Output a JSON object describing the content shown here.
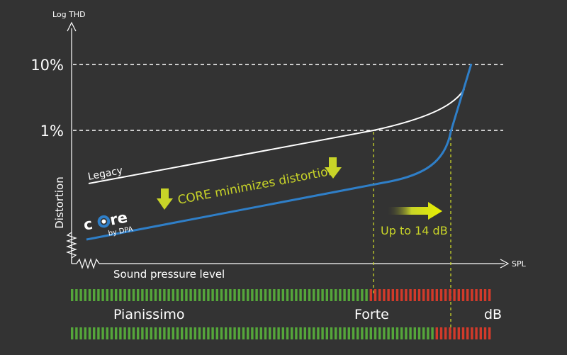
{
  "chart_data": {
    "type": "line",
    "axes": {
      "y_label": "Log THD",
      "y_title": "Distortion",
      "x_label": "SPL",
      "x_title": "Sound pressure level",
      "y_ticks": [
        "10%",
        "1%"
      ],
      "grid": "dashed at 1% and 10%"
    },
    "series": [
      {
        "name": "Legacy",
        "color": "#ffffff",
        "note": "linear rise, crosses 1% near Forte"
      },
      {
        "name": "CORE by DPA",
        "color": "#2f7fc8",
        "note": "stays lower, crosses 1% about 14 dB later"
      }
    ],
    "annotations": {
      "core_text": "CORE minimizes distortion",
      "gain_text": "Up to 14 dB",
      "text_color": "#c8d428"
    },
    "logo": {
      "word": "core",
      "by": "by DPA"
    },
    "level_bars": [
      {
        "name": "legacy-level-bar",
        "segments": 96,
        "green_segments": 68
      },
      {
        "name": "core-level-bar",
        "segments": 96,
        "green_segments": 83
      }
    ],
    "scale_labels": {
      "low": "Pianissimo",
      "mid": "Forte",
      "unit": "dB"
    },
    "colors": {
      "green": "#55a63a",
      "red": "#d23a2a",
      "axis": "#ffffff"
    }
  }
}
